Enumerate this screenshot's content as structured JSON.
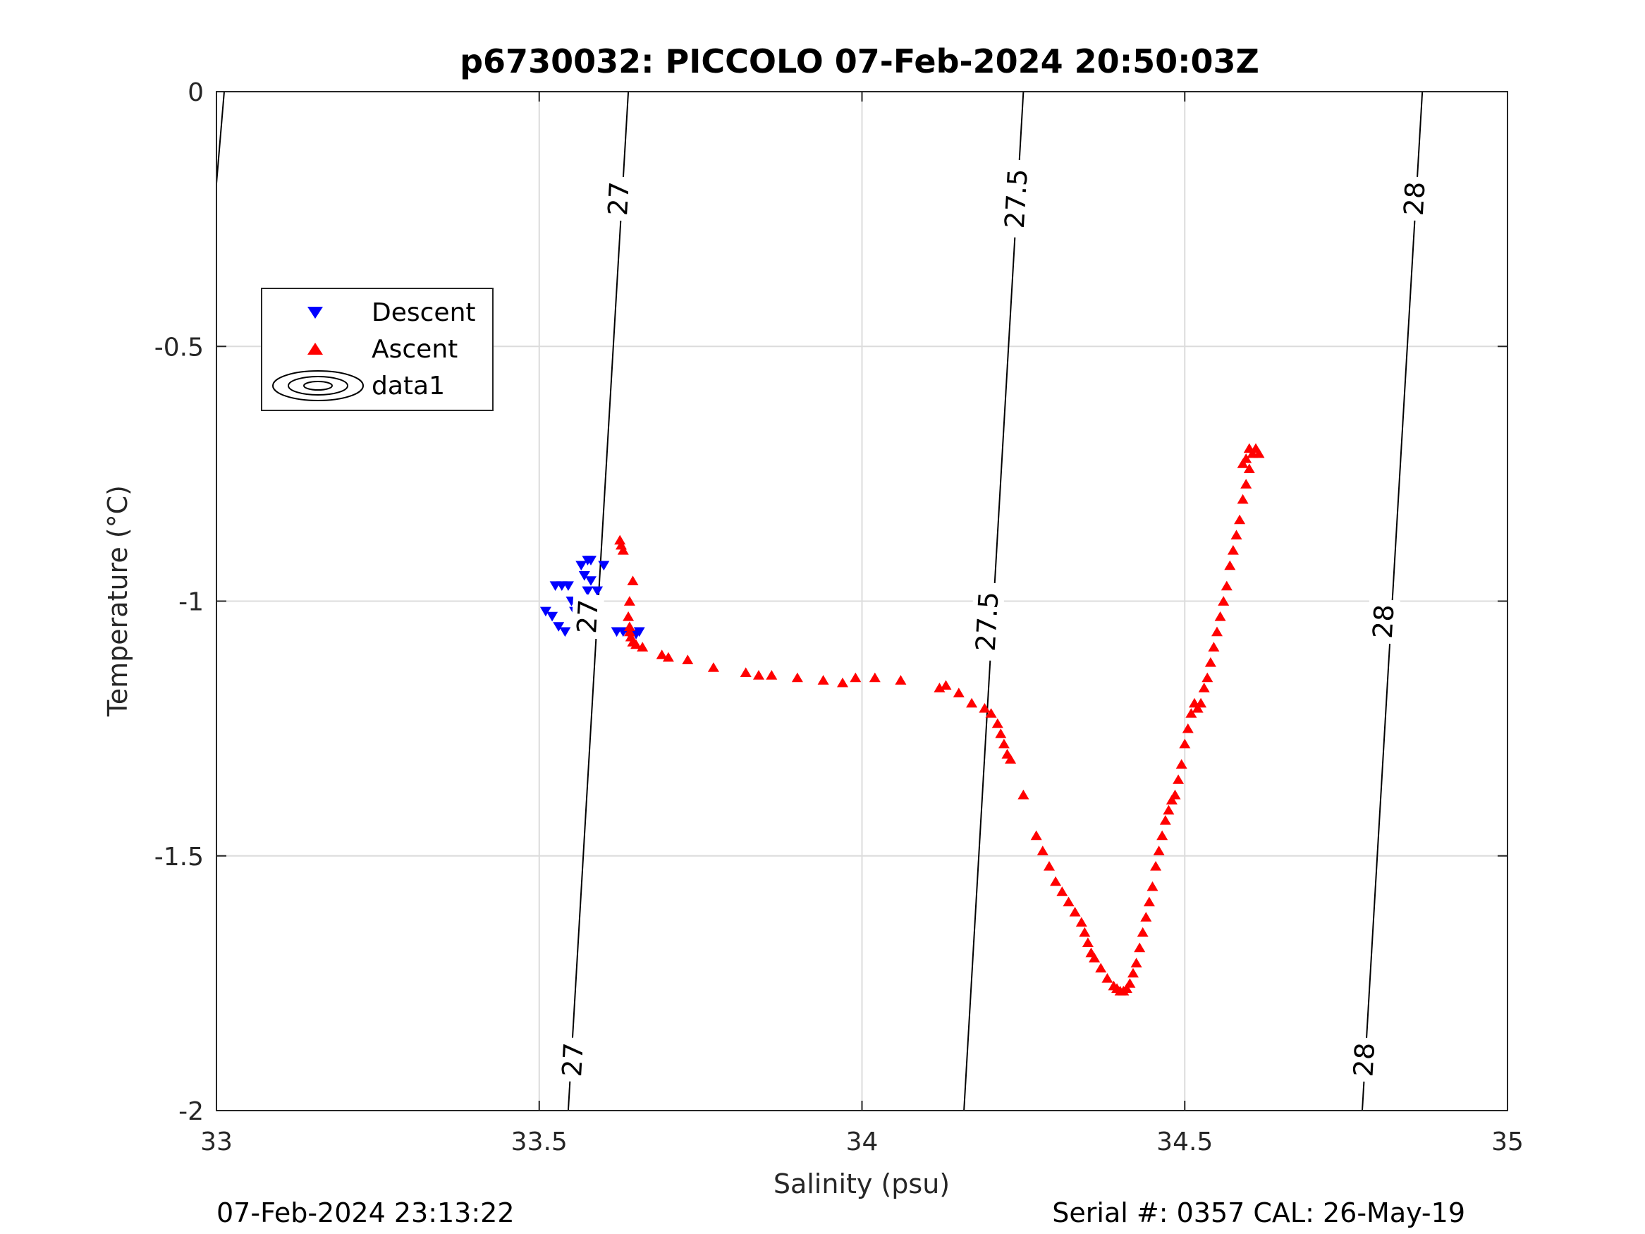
{
  "chart_data": {
    "type": "scatter",
    "title": "p6730032: PICCOLO 07-Feb-2024 20:50:03Z",
    "xlabel": "Salinity (psu)",
    "ylabel": "Temperature (°C)",
    "xlim": [
      33,
      35
    ],
    "ylim": [
      -2,
      0
    ],
    "xticks": [
      "33",
      "33.5",
      "34",
      "34.5",
      "35"
    ],
    "yticks": [
      "0",
      "-0.5",
      "-1",
      "-1.5",
      "-2"
    ],
    "grid": true,
    "legend_position": "upper-left",
    "legend": [
      "Descent",
      "Ascent",
      "data1"
    ],
    "colors": {
      "descent": "#0000ff",
      "ascent": "#ff0000",
      "contour": "#000000",
      "grid": "#dcdcdc"
    },
    "contours": [
      {
        "label": "27",
        "points": [
          [
            33.545,
            -2.0
          ],
          [
            33.638,
            0.0
          ]
        ]
      },
      {
        "label": "27.5",
        "points": [
          [
            34.158,
            -2.0
          ],
          [
            34.25,
            0.0
          ]
        ]
      },
      {
        "label": "28",
        "points": [
          [
            34.775,
            -2.0
          ],
          [
            34.868,
            0.0
          ]
        ]
      }
    ],
    "contour_labels": [
      {
        "text": "27",
        "x": 33.623,
        "y": -0.21
      },
      {
        "text": "27.5",
        "x": 34.239,
        "y": -0.21
      },
      {
        "text": "28",
        "x": 34.856,
        "y": -0.21
      },
      {
        "text": "27",
        "x": 33.575,
        "y": -1.03
      },
      {
        "text": "27.5",
        "x": 34.194,
        "y": -1.04
      },
      {
        "text": "28",
        "x": 34.808,
        "y": -1.04
      },
      {
        "text": "27",
        "x": 33.552,
        "y": -1.9
      },
      {
        "text": "28",
        "x": 34.778,
        "y": -1.9
      }
    ],
    "partial_contour": [
      [
        33.0,
        -0.18
      ],
      [
        33.012,
        0.0
      ]
    ],
    "series": [
      {
        "name": "Descent",
        "marker": "triangle-down",
        "points": [
          [
            33.51,
            -1.02
          ],
          [
            33.52,
            -1.03
          ],
          [
            33.53,
            -1.05
          ],
          [
            33.54,
            -1.06
          ],
          [
            33.525,
            -0.97
          ],
          [
            33.535,
            -0.97
          ],
          [
            33.545,
            -0.97
          ],
          [
            33.55,
            -1.0
          ],
          [
            33.555,
            -1.02
          ],
          [
            33.56,
            -1.06
          ],
          [
            33.565,
            -0.93
          ],
          [
            33.57,
            -0.95
          ],
          [
            33.575,
            -0.92
          ],
          [
            33.575,
            -0.98
          ],
          [
            33.58,
            -0.92
          ],
          [
            33.58,
            -0.96
          ],
          [
            33.58,
            -1.05
          ],
          [
            33.59,
            -0.98
          ],
          [
            33.6,
            -0.93
          ],
          [
            33.62,
            -1.06
          ],
          [
            33.63,
            -1.06
          ],
          [
            33.64,
            -1.065
          ],
          [
            33.65,
            -1.065
          ],
          [
            33.655,
            -1.06
          ],
          [
            33.585,
            -1.06
          ],
          [
            33.57,
            -1.06
          ]
        ]
      },
      {
        "name": "Ascent",
        "marker": "triangle-up",
        "points": [
          [
            33.625,
            -0.88
          ],
          [
            33.627,
            -0.89
          ],
          [
            33.63,
            -0.9
          ],
          [
            33.645,
            -0.96
          ],
          [
            33.64,
            -1.0
          ],
          [
            33.638,
            -1.03
          ],
          [
            33.64,
            -1.05
          ],
          [
            33.64,
            -1.06
          ],
          [
            33.642,
            -1.07
          ],
          [
            33.645,
            -1.08
          ],
          [
            33.65,
            -1.085
          ],
          [
            33.66,
            -1.09
          ],
          [
            33.69,
            -1.105
          ],
          [
            33.7,
            -1.11
          ],
          [
            33.73,
            -1.115
          ],
          [
            33.77,
            -1.13
          ],
          [
            33.82,
            -1.14
          ],
          [
            33.84,
            -1.145
          ],
          [
            33.86,
            -1.145
          ],
          [
            33.9,
            -1.15
          ],
          [
            33.94,
            -1.155
          ],
          [
            33.97,
            -1.16
          ],
          [
            33.99,
            -1.15
          ],
          [
            34.02,
            -1.15
          ],
          [
            34.06,
            -1.155
          ],
          [
            34.12,
            -1.17
          ],
          [
            34.13,
            -1.165
          ],
          [
            34.15,
            -1.18
          ],
          [
            34.17,
            -1.2
          ],
          [
            34.19,
            -1.21
          ],
          [
            34.2,
            -1.22
          ],
          [
            34.21,
            -1.24
          ],
          [
            34.215,
            -1.26
          ],
          [
            34.22,
            -1.28
          ],
          [
            34.225,
            -1.3
          ],
          [
            34.23,
            -1.31
          ],
          [
            34.25,
            -1.38
          ],
          [
            34.27,
            -1.46
          ],
          [
            34.28,
            -1.49
          ],
          [
            34.29,
            -1.52
          ],
          [
            34.3,
            -1.55
          ],
          [
            34.31,
            -1.57
          ],
          [
            34.32,
            -1.59
          ],
          [
            34.33,
            -1.61
          ],
          [
            34.34,
            -1.63
          ],
          [
            34.345,
            -1.65
          ],
          [
            34.35,
            -1.67
          ],
          [
            34.355,
            -1.69
          ],
          [
            34.36,
            -1.7
          ],
          [
            34.37,
            -1.72
          ],
          [
            34.38,
            -1.74
          ],
          [
            34.39,
            -1.755
          ],
          [
            34.395,
            -1.76
          ],
          [
            34.4,
            -1.765
          ],
          [
            34.405,
            -1.765
          ],
          [
            34.41,
            -1.76
          ],
          [
            34.415,
            -1.75
          ],
          [
            34.42,
            -1.73
          ],
          [
            34.425,
            -1.71
          ],
          [
            34.43,
            -1.68
          ],
          [
            34.435,
            -1.65
          ],
          [
            34.44,
            -1.62
          ],
          [
            34.445,
            -1.59
          ],
          [
            34.45,
            -1.56
          ],
          [
            34.455,
            -1.52
          ],
          [
            34.46,
            -1.49
          ],
          [
            34.465,
            -1.46
          ],
          [
            34.47,
            -1.43
          ],
          [
            34.475,
            -1.41
          ],
          [
            34.48,
            -1.39
          ],
          [
            34.485,
            -1.38
          ],
          [
            34.49,
            -1.35
          ],
          [
            34.495,
            -1.32
          ],
          [
            34.5,
            -1.28
          ],
          [
            34.505,
            -1.25
          ],
          [
            34.51,
            -1.22
          ],
          [
            34.515,
            -1.2
          ],
          [
            34.52,
            -1.21
          ],
          [
            34.525,
            -1.2
          ],
          [
            34.53,
            -1.17
          ],
          [
            34.535,
            -1.15
          ],
          [
            34.54,
            -1.12
          ],
          [
            34.545,
            -1.09
          ],
          [
            34.55,
            -1.06
          ],
          [
            34.555,
            -1.03
          ],
          [
            34.56,
            -1.0
          ],
          [
            34.565,
            -0.97
          ],
          [
            34.57,
            -0.93
          ],
          [
            34.575,
            -0.9
          ],
          [
            34.58,
            -0.87
          ],
          [
            34.585,
            -0.84
          ],
          [
            34.59,
            -0.8
          ],
          [
            34.595,
            -0.77
          ],
          [
            34.6,
            -0.74
          ],
          [
            34.605,
            -0.71
          ],
          [
            34.6,
            -0.7
          ],
          [
            34.61,
            -0.7
          ],
          [
            34.615,
            -0.71
          ],
          [
            34.595,
            -0.72
          ],
          [
            34.59,
            -0.73
          ]
        ]
      }
    ]
  },
  "footer": {
    "left": "07-Feb-2024 23:13:22",
    "right": "Serial #: 0357  CAL: 26-May-19"
  }
}
